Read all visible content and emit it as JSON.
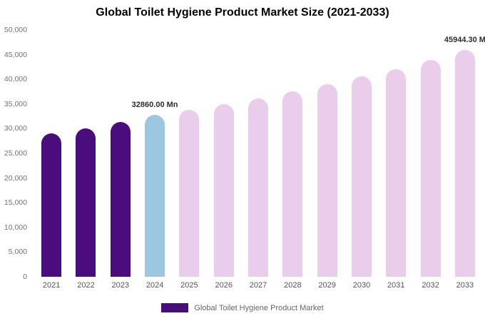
{
  "title": "Global Toilet Hygiene Product Market Size (2021-2033)",
  "legend": {
    "label": "Global Toilet Hygiene Product Market",
    "swatch_color": "#4b0d7e"
  },
  "chart_data": {
    "type": "bar",
    "title": "Global Toilet Hygiene Product Market Size (2021-2033)",
    "xlabel": "",
    "ylabel": "",
    "unit": "Mn",
    "categories": [
      "2021",
      "2022",
      "2023",
      "2024",
      "2025",
      "2026",
      "2027",
      "2028",
      "2029",
      "2030",
      "2031",
      "2032",
      "2033"
    ],
    "values": [
      29000,
      30100,
      31300,
      32860,
      33800,
      35000,
      36200,
      37600,
      39000,
      40600,
      42100,
      43900,
      45944.3
    ],
    "bar_colors": [
      "#4b0d7e",
      "#4b0d7e",
      "#4b0d7e",
      "#9dc6e1",
      "#e9cdeb",
      "#e9cdeb",
      "#e9cdeb",
      "#e9cdeb",
      "#e9cdeb",
      "#e9cdeb",
      "#e9cdeb",
      "#e9cdeb",
      "#e9cdeb"
    ],
    "ylim": [
      0,
      50000
    ],
    "ytick_values": [
      0,
      5000,
      10000,
      15000,
      20000,
      25000,
      30000,
      35000,
      40000,
      45000,
      50000
    ],
    "ytick_labels": [
      "0",
      "5,000",
      "10,000",
      "15,000",
      "20,000",
      "25,000",
      "30,000",
      "35,000",
      "40,000",
      "45,000",
      "50,000"
    ],
    "grid": false,
    "legend_position": "bottom",
    "annotations": [
      {
        "index": 3,
        "text": "32860.00 Mn"
      },
      {
        "index": 12,
        "text": "45944.30 M"
      }
    ]
  }
}
